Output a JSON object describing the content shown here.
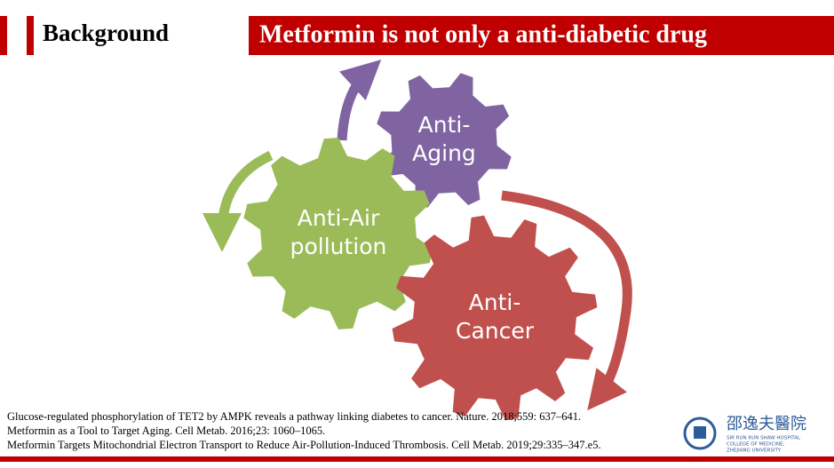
{
  "header": {
    "section": "Background",
    "title": "Metformin is not only a anti-diabetic drug"
  },
  "gears": [
    {
      "lines": [
        "Anti-",
        "Aging"
      ]
    },
    {
      "lines": [
        "Anti-Air",
        "pollution"
      ]
    },
    {
      "lines": [
        "Anti-",
        "Cancer"
      ]
    }
  ],
  "references": [
    "Glucose-regulated phosphorylation of TET2 by AMPK reveals a pathway linking diabetes to cancer. Nature. 2018;559: 637–641.",
    "Metformin as a Tool to Target Aging. Cell Metab. 2016;23: 1060–1065.",
    "Metformin Targets Mitochondrial Electron Transport to Reduce Air-Pollution-Induced Thrombosis. Cell Metab. 2019;29:335–347.e5."
  ],
  "logo": {
    "name": "邵逸夫醫院",
    "line1": "SIR RUN RUN SHAW HOSPITAL",
    "line2": "COLLEGE OF MEDICINE,",
    "line3": "ZHEJIANG UNIVERSITY"
  }
}
